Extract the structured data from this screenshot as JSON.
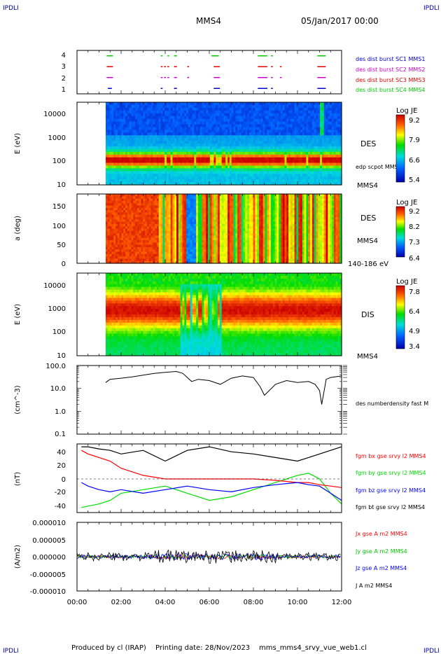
{
  "corner_labels": [
    "IPDLI",
    "IPDLI",
    "IPDLI",
    "IPDLI"
  ],
  "header": {
    "spacecraft": "MMS4",
    "datetime": "05/Jan/2017 00:00"
  },
  "footer": {
    "produced_by": "Produced by cl (IRAP)",
    "printing_date": "Printing date: 28/Nov/2023",
    "filename": "mms_mms4_srvy_vue_web1.cl"
  },
  "time_axis": {
    "range_hours": [
      0,
      12
    ],
    "tick_labels": [
      "00:00",
      "02:00",
      "04:00",
      "06:00",
      "08:00",
      "10:00",
      "12:00"
    ]
  },
  "colors": {
    "mms1": "#0000cc",
    "mms2": "#cc00cc",
    "mms3": "#dd0000",
    "mms4": "#00cc00",
    "x": "#ff0000",
    "y": "#00dd00",
    "z": "#0000ff",
    "t": "#000000"
  },
  "chart_data": [
    {
      "type": "line",
      "panel": "burst availability",
      "ylim": [
        0.5,
        4.5
      ],
      "yticks": [
        "1",
        "2",
        "3",
        "4"
      ],
      "legend": [
        {
          "label": "des dist burst SC1 MMS1",
          "color": "#0000cc"
        },
        {
          "label": "des dist burst SC2 MMS2",
          "color": "#cc00cc"
        },
        {
          "label": "des dist burst SC3 MMS3",
          "color": "#dd0000"
        },
        {
          "label": "des dist burst SC4 MMS4",
          "color": "#00cc00"
        }
      ],
      "series": [
        {
          "level": 4,
          "color": "#00cc00",
          "intervals": [
            [
              1.35,
              1.6
            ],
            [
              3.8,
              3.85
            ],
            [
              4.1,
              4.15
            ],
            [
              4.4,
              4.5
            ],
            [
              6.1,
              6.4
            ],
            [
              8.2,
              8.6
            ],
            [
              8.8,
              8.85
            ],
            [
              10.9,
              11.25
            ]
          ]
        },
        {
          "level": 3,
          "color": "#dd0000",
          "intervals": [
            [
              1.35,
              1.6
            ],
            [
              3.8,
              3.85
            ],
            [
              3.95,
              4.0
            ],
            [
              4.1,
              4.15
            ],
            [
              4.4,
              4.5
            ],
            [
              5.0,
              5.05
            ],
            [
              6.2,
              6.45
            ],
            [
              8.2,
              8.6
            ],
            [
              8.8,
              8.85
            ],
            [
              9.2,
              9.25
            ],
            [
              10.9,
              11.25
            ]
          ]
        },
        {
          "level": 2,
          "color": "#cc00cc",
          "intervals": [
            [
              1.35,
              1.6
            ],
            [
              3.8,
              3.85
            ],
            [
              3.95,
              4.0
            ],
            [
              4.1,
              4.15
            ],
            [
              4.4,
              4.5
            ],
            [
              5.0,
              5.05
            ],
            [
              6.2,
              6.45
            ],
            [
              8.2,
              8.6
            ],
            [
              8.8,
              8.85
            ],
            [
              9.2,
              9.25
            ],
            [
              10.9,
              11.25
            ]
          ]
        },
        {
          "level": 1,
          "color": "#0000cc",
          "intervals": [
            [
              1.4,
              1.55
            ],
            [
              3.8,
              3.85
            ],
            [
              4.4,
              4.5
            ],
            [
              6.2,
              6.45
            ],
            [
              8.2,
              8.6
            ],
            [
              8.8,
              8.85
            ],
            [
              10.9,
              11.25
            ]
          ]
        }
      ]
    },
    {
      "type": "heatmap",
      "panel": "DES energy spectrogram",
      "ylabel": "E (eV)",
      "yscale": "log",
      "ylim": [
        10,
        30000
      ],
      "ytick_labels": [
        "10",
        "100",
        "1000",
        "10000"
      ],
      "side_labels": [
        "DES",
        "edp scpot MMS4",
        "MMS4"
      ],
      "colorbar": {
        "title": "Log JE",
        "ticks": [
          "9.2",
          "7.9",
          "6.6",
          "5.4"
        ]
      },
      "data_start_hour": 1.3
    },
    {
      "type": "heatmap",
      "panel": "DES pitch angle",
      "ylabel": "a (deg)",
      "ylim": [
        0,
        180
      ],
      "ytick_labels": [
        "0",
        "50",
        "100",
        "150"
      ],
      "side_labels": [
        "DES",
        "MMS4",
        "140-186 eV"
      ],
      "colorbar": {
        "title": "Log JE",
        "ticks": [
          "9.2",
          "8.2",
          "7.3",
          "6.4"
        ]
      },
      "data_start_hour": 1.3
    },
    {
      "type": "heatmap",
      "panel": "DIS energy spectrogram",
      "ylabel": "E (eV)",
      "yscale": "log",
      "ylim": [
        10,
        30000
      ],
      "ytick_labels": [
        "10",
        "100",
        "1000",
        "10000"
      ],
      "side_labels": [
        "DIS",
        "MMS4"
      ],
      "colorbar": {
        "title": "Log JE",
        "ticks": [
          "7.8",
          "6.4",
          "4.9",
          "3.4"
        ]
      },
      "data_start_hour": 1.3
    },
    {
      "type": "line",
      "panel": "density",
      "ylabel": "(cm^-3)",
      "yscale": "log",
      "ylim": [
        0.1,
        100
      ],
      "ytick_labels": [
        "0.1",
        "1.0",
        "10.0",
        "100.0"
      ],
      "series": [
        {
          "name": "des numberdensity fast M",
          "color": "#000000",
          "x": [
            1.3,
            1.5,
            2,
            2.5,
            3,
            3.5,
            4,
            4.5,
            4.8,
            5,
            5.2,
            5.5,
            6,
            6.5,
            7,
            7.5,
            8,
            8.3,
            8.5,
            9,
            9.5,
            10,
            10.5,
            10.8,
            11,
            11.1,
            11.3,
            11.5,
            12
          ],
          "y": [
            18,
            25,
            28,
            32,
            38,
            45,
            50,
            55,
            45,
            30,
            20,
            25,
            22,
            15,
            28,
            35,
            30,
            12,
            5,
            15,
            22,
            18,
            20,
            15,
            8,
            2,
            25,
            30,
            35
          ]
        }
      ]
    },
    {
      "type": "line",
      "panel": "magnetic field",
      "ylabel": "(nT)",
      "ylim": [
        -48,
        48
      ],
      "ytick_labels": [
        "-40",
        "-20",
        "0",
        "20",
        "40"
      ],
      "series": [
        {
          "name": "fgm bx gse srvy l2 MMS4",
          "color": "#ff0000",
          "x": [
            0.2,
            0.5,
            1,
            1.5,
            2,
            3,
            4,
            5,
            6,
            7,
            8,
            9,
            10,
            10.5,
            11,
            11.5,
            12
          ],
          "y": [
            40,
            35,
            30,
            25,
            15,
            5,
            0,
            0,
            0,
            0,
            0,
            -2,
            -5,
            -5,
            -8,
            -10,
            -12
          ]
        },
        {
          "name": "fgm by gse srvy l2 MMS4",
          "color": "#00dd00",
          "x": [
            0.2,
            0.5,
            1,
            1.5,
            2,
            3,
            4,
            5,
            6,
            7,
            8,
            9,
            10,
            10.5,
            11,
            11.5,
            12
          ],
          "y": [
            -40,
            -38,
            -35,
            -30,
            -20,
            -15,
            -10,
            -20,
            -30,
            -25,
            -15,
            -5,
            5,
            8,
            0,
            -20,
            -35
          ]
        },
        {
          "name": "fgm bz gse srvy l2 MMS4",
          "color": "#0000ff",
          "x": [
            0.2,
            0.5,
            1,
            1.5,
            2,
            3,
            4,
            5,
            6,
            7,
            8,
            9,
            10,
            10.5,
            11,
            11.5,
            12
          ],
          "y": [
            -5,
            -10,
            -15,
            -18,
            -15,
            -20,
            -15,
            -10,
            -15,
            -18,
            -12,
            -8,
            -5,
            -8,
            -10,
            -20,
            -30
          ]
        },
        {
          "name": "fgm bt gse srvy l2 MMS4",
          "color": "#000000",
          "x": [
            0.2,
            0.5,
            1,
            1.5,
            2,
            3,
            4,
            5,
            6,
            7,
            8,
            9,
            10,
            10.5,
            11,
            11.5,
            12
          ],
          "y": [
            45,
            45,
            42,
            40,
            35,
            40,
            25,
            40,
            45,
            38,
            35,
            30,
            25,
            30,
            35,
            40,
            45
          ]
        }
      ]
    },
    {
      "type": "line",
      "panel": "current density",
      "ylabel": "(A/m2)",
      "ylim": [
        -1e-05,
        1e-05
      ],
      "ytick_labels": [
        "0.000010",
        "0.000005",
        "0.000000",
        "-0.000005",
        "-0.000010"
      ],
      "series": [
        {
          "name": "Jx gse A m2 MMS4",
          "color": "#ff0000",
          "amp": 4e-07
        },
        {
          "name": "Jy gse A m2 MMS4",
          "color": "#00dd00",
          "amp": 4e-07
        },
        {
          "name": "Jz gse A m2 MMS4",
          "color": "#0000ff",
          "amp": 6e-07
        },
        {
          "name": "J A m2 MMS4",
          "color": "#000000",
          "amp": 1.2e-06
        }
      ]
    }
  ]
}
